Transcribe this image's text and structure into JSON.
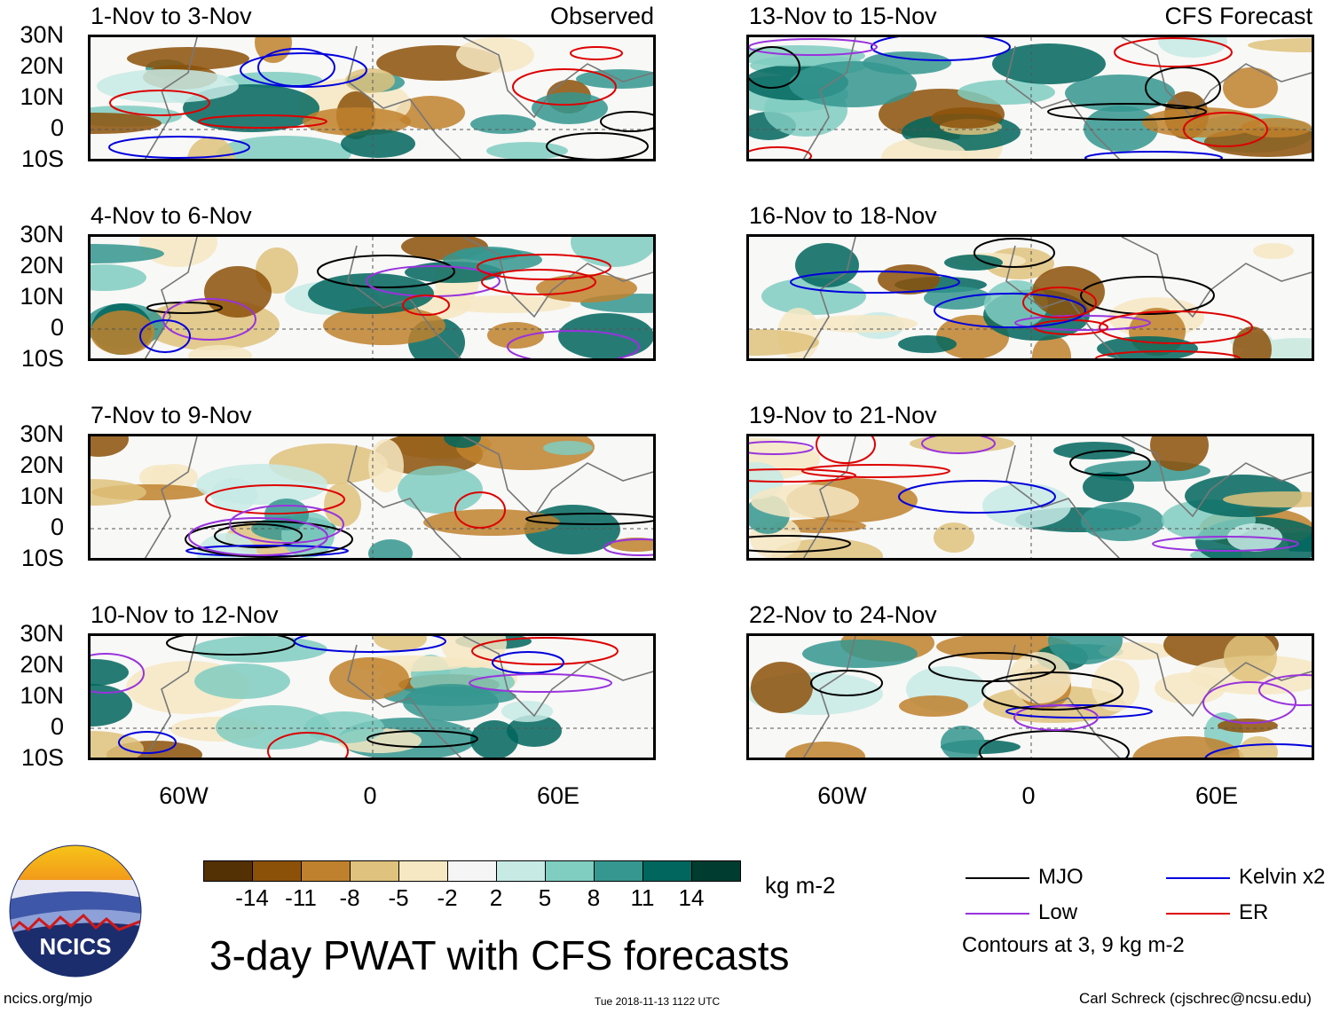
{
  "panels": [
    {
      "title": "1-Nov to 3-Nov",
      "tag": "Observed"
    },
    {
      "title": "13-Nov to 15-Nov",
      "tag": "CFS Forecast"
    },
    {
      "title": "4-Nov to 6-Nov",
      "tag": ""
    },
    {
      "title": "16-Nov to 18-Nov",
      "tag": ""
    },
    {
      "title": "7-Nov to 9-Nov",
      "tag": ""
    },
    {
      "title": "19-Nov to 21-Nov",
      "tag": ""
    },
    {
      "title": "10-Nov to 12-Nov",
      "tag": ""
    },
    {
      "title": "22-Nov to 24-Nov",
      "tag": ""
    }
  ],
  "lat_labels": [
    "30N",
    "20N",
    "10N",
    "0",
    "10S"
  ],
  "lon_labels": [
    "60W",
    "0",
    "60E"
  ],
  "colorbar": {
    "colors": [
      "#543005",
      "#8c5109",
      "#bf812d",
      "#dfc27d",
      "#f6e8c3",
      "#f5f5f5",
      "#c7eae5",
      "#80cdc1",
      "#35978f",
      "#01665e",
      "#003c30"
    ],
    "ticks": [
      "-14",
      "-11",
      "-8",
      "-5",
      "-2",
      "2",
      "5",
      "8",
      "11",
      "14"
    ],
    "units": "kg m-2"
  },
  "title": "3-day PWAT with CFS forecasts",
  "legend": {
    "items": [
      {
        "label": "MJO",
        "color": "#000000"
      },
      {
        "label": "Kelvin x2",
        "color": "#0000dd"
      },
      {
        "label": "Low",
        "color": "#9933dd"
      },
      {
        "label": "ER",
        "color": "#dd0000"
      }
    ],
    "note": "Contours at 3, 9 kg m-2"
  },
  "logo_text": "NCICS",
  "footer": {
    "url": "ncics.org/mjo",
    "timestamp": "Tue 2018-11-13 1122 UTC",
    "credit": "Carl Schreck (cjschrec@ncsu.edu)"
  }
}
